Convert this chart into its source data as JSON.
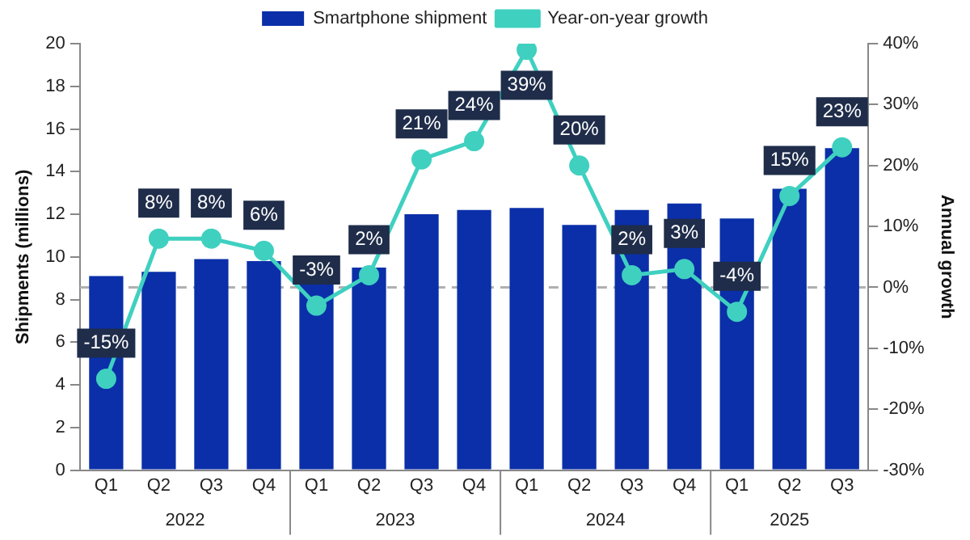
{
  "chart_data": {
    "type": "bar",
    "categories": [
      "Q1",
      "Q2",
      "Q3",
      "Q4",
      "Q1",
      "Q2",
      "Q3",
      "Q4",
      "Q1",
      "Q2",
      "Q3",
      "Q4",
      "Q1",
      "Q2",
      "Q3"
    ],
    "series": [
      {
        "name": "Smartphone shipment",
        "color": "#0a2fa8",
        "values": [
          9.1,
          9.3,
          9.9,
          9.8,
          8.8,
          9.5,
          12.0,
          12.2,
          12.3,
          11.5,
          12.2,
          12.5,
          11.8,
          13.2,
          15.1
        ]
      },
      {
        "name": "Year-on-year growth",
        "type": "line",
        "axis": "y2",
        "color": "#3fd0c0",
        "marker": "circle",
        "values": [
          -15,
          8,
          8,
          6,
          -3,
          2,
          21,
          24,
          39,
          20,
          2,
          3,
          -4,
          15,
          23
        ],
        "value_labels": [
          "-15%",
          "8%",
          "8%",
          "6%",
          "-3%",
          "2%",
          "21%",
          "24%",
          "39%",
          "20%",
          "2%",
          "3%",
          "-4%",
          "15%",
          "23%"
        ]
      }
    ],
    "ylabel": "Shipments (millions)",
    "y2label": "Annual growth",
    "ylim": [
      0,
      20
    ],
    "yticks": [
      0,
      2,
      4,
      6,
      8,
      10,
      12,
      14,
      16,
      18,
      20
    ],
    "y2lim": [
      -30,
      40
    ],
    "y2ticks": [
      {
        "value": -30,
        "label": "-30%"
      },
      {
        "value": -20,
        "label": "-20%"
      },
      {
        "value": -10,
        "label": "-10%"
      },
      {
        "value": 0,
        "label": "0%"
      },
      {
        "value": 10,
        "label": "10%"
      },
      {
        "value": 20,
        "label": "20%"
      },
      {
        "value": 30,
        "label": "30%"
      },
      {
        "value": 40,
        "label": "40%"
      }
    ],
    "ref_lines": [
      {
        "axis": "y2",
        "value": 0,
        "label": null,
        "color": "#b0b0b0",
        "line_style": "dashed"
      }
    ],
    "annotations": [
      "2022",
      "2023",
      "2024",
      "2025"
    ],
    "grid": false,
    "legend": "top"
  }
}
